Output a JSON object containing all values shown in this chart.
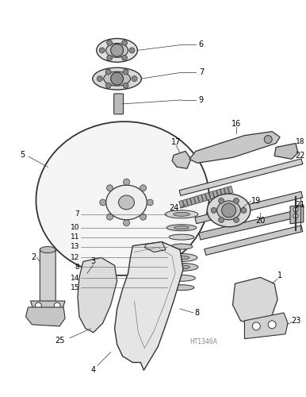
{
  "background_color": "#ffffff",
  "line_color": "#333333",
  "fig_width": 3.86,
  "fig_height": 5.0,
  "dpi": 100,
  "watermark": "HT1346A"
}
